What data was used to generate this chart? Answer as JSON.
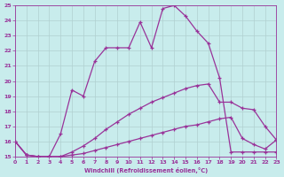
{
  "xlabel": "Windchill (Refroidissement éolien,°C)",
  "xlim": [
    0,
    23
  ],
  "ylim": [
    15,
    25
  ],
  "xticks": [
    0,
    1,
    2,
    3,
    4,
    5,
    6,
    7,
    8,
    9,
    10,
    11,
    12,
    13,
    14,
    15,
    16,
    17,
    18,
    19,
    20,
    21,
    22,
    23
  ],
  "yticks": [
    15,
    16,
    17,
    18,
    19,
    20,
    21,
    22,
    23,
    24,
    25
  ],
  "background_color": "#c8ecec",
  "grid_color": "#b0d0d0",
  "line_color": "#993399",
  "line1_x": [
    0,
    1,
    2,
    3,
    4,
    5,
    6,
    7,
    8,
    9,
    10,
    11,
    12,
    13,
    14,
    15,
    16,
    17,
    18,
    19,
    20,
    21,
    22,
    23
  ],
  "line1_y": [
    16,
    15.1,
    15,
    15,
    16.5,
    19.4,
    19.0,
    21.3,
    22.2,
    22.2,
    22.2,
    23.9,
    22.2,
    24.8,
    25.0,
    24.3,
    23.3,
    22.5,
    20.2,
    15.3,
    15.3,
    15.3,
    15.3,
    15.3
  ],
  "line2_x": [
    0,
    1,
    2,
    3,
    4,
    5,
    6,
    7,
    8,
    9,
    10,
    11,
    12,
    13,
    14,
    15,
    16,
    17,
    18,
    19,
    20,
    21,
    22,
    23
  ],
  "line2_y": [
    16,
    15.1,
    15,
    15,
    15,
    15.3,
    15.7,
    16.2,
    16.8,
    17.3,
    17.8,
    18.2,
    18.6,
    18.9,
    19.2,
    19.5,
    19.7,
    19.8,
    18.6,
    18.6,
    18.2,
    18.1,
    17.0,
    16.1
  ],
  "line3_x": [
    0,
    1,
    2,
    3,
    4,
    5,
    6,
    7,
    8,
    9,
    10,
    11,
    12,
    13,
    14,
    15,
    16,
    17,
    18,
    19,
    20,
    21,
    22,
    23
  ],
  "line3_y": [
    16,
    15.1,
    15,
    15,
    15,
    15.1,
    15.2,
    15.4,
    15.6,
    15.8,
    16.0,
    16.2,
    16.4,
    16.6,
    16.8,
    17.0,
    17.1,
    17.3,
    17.5,
    17.6,
    16.2,
    15.8,
    15.5,
    16.1
  ]
}
